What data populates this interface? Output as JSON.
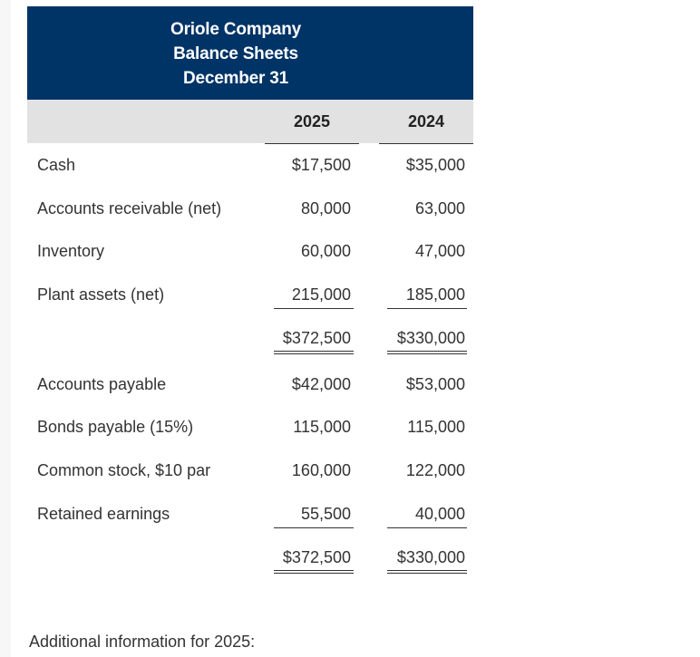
{
  "header": {
    "company": "Oriole Company",
    "statement": "Balance Sheets",
    "date": "December 31"
  },
  "columns": {
    "year_1": "2025",
    "year_2": "2024"
  },
  "assets": [
    {
      "label": "Cash",
      "y2025": "$17,500",
      "y2024": "$35,000"
    },
    {
      "label": "Accounts receivable (net)",
      "y2025": "80,000",
      "y2024": "63,000"
    },
    {
      "label": "Inventory",
      "y2025": "60,000",
      "y2024": "47,000"
    },
    {
      "label": "Plant assets (net)",
      "y2025": "215,000",
      "y2024": "185,000"
    }
  ],
  "assets_total": {
    "y2025": "$372,500",
    "y2024": "$330,000"
  },
  "liabilities_equity": [
    {
      "label": "Accounts payable",
      "y2025": "$42,000",
      "y2024": "$53,000"
    },
    {
      "label": "Bonds payable (15%)",
      "y2025": "115,000",
      "y2024": "115,000"
    },
    {
      "label": "Common stock, $10 par",
      "y2025": "160,000",
      "y2024": "122,000"
    },
    {
      "label": "Retained earnings",
      "y2025": "55,500",
      "y2024": "40,000"
    }
  ],
  "liabilities_equity_total": {
    "y2025": "$372,500",
    "y2024": "$330,000"
  },
  "footer": {
    "note": "Additional information for 2025:"
  }
}
